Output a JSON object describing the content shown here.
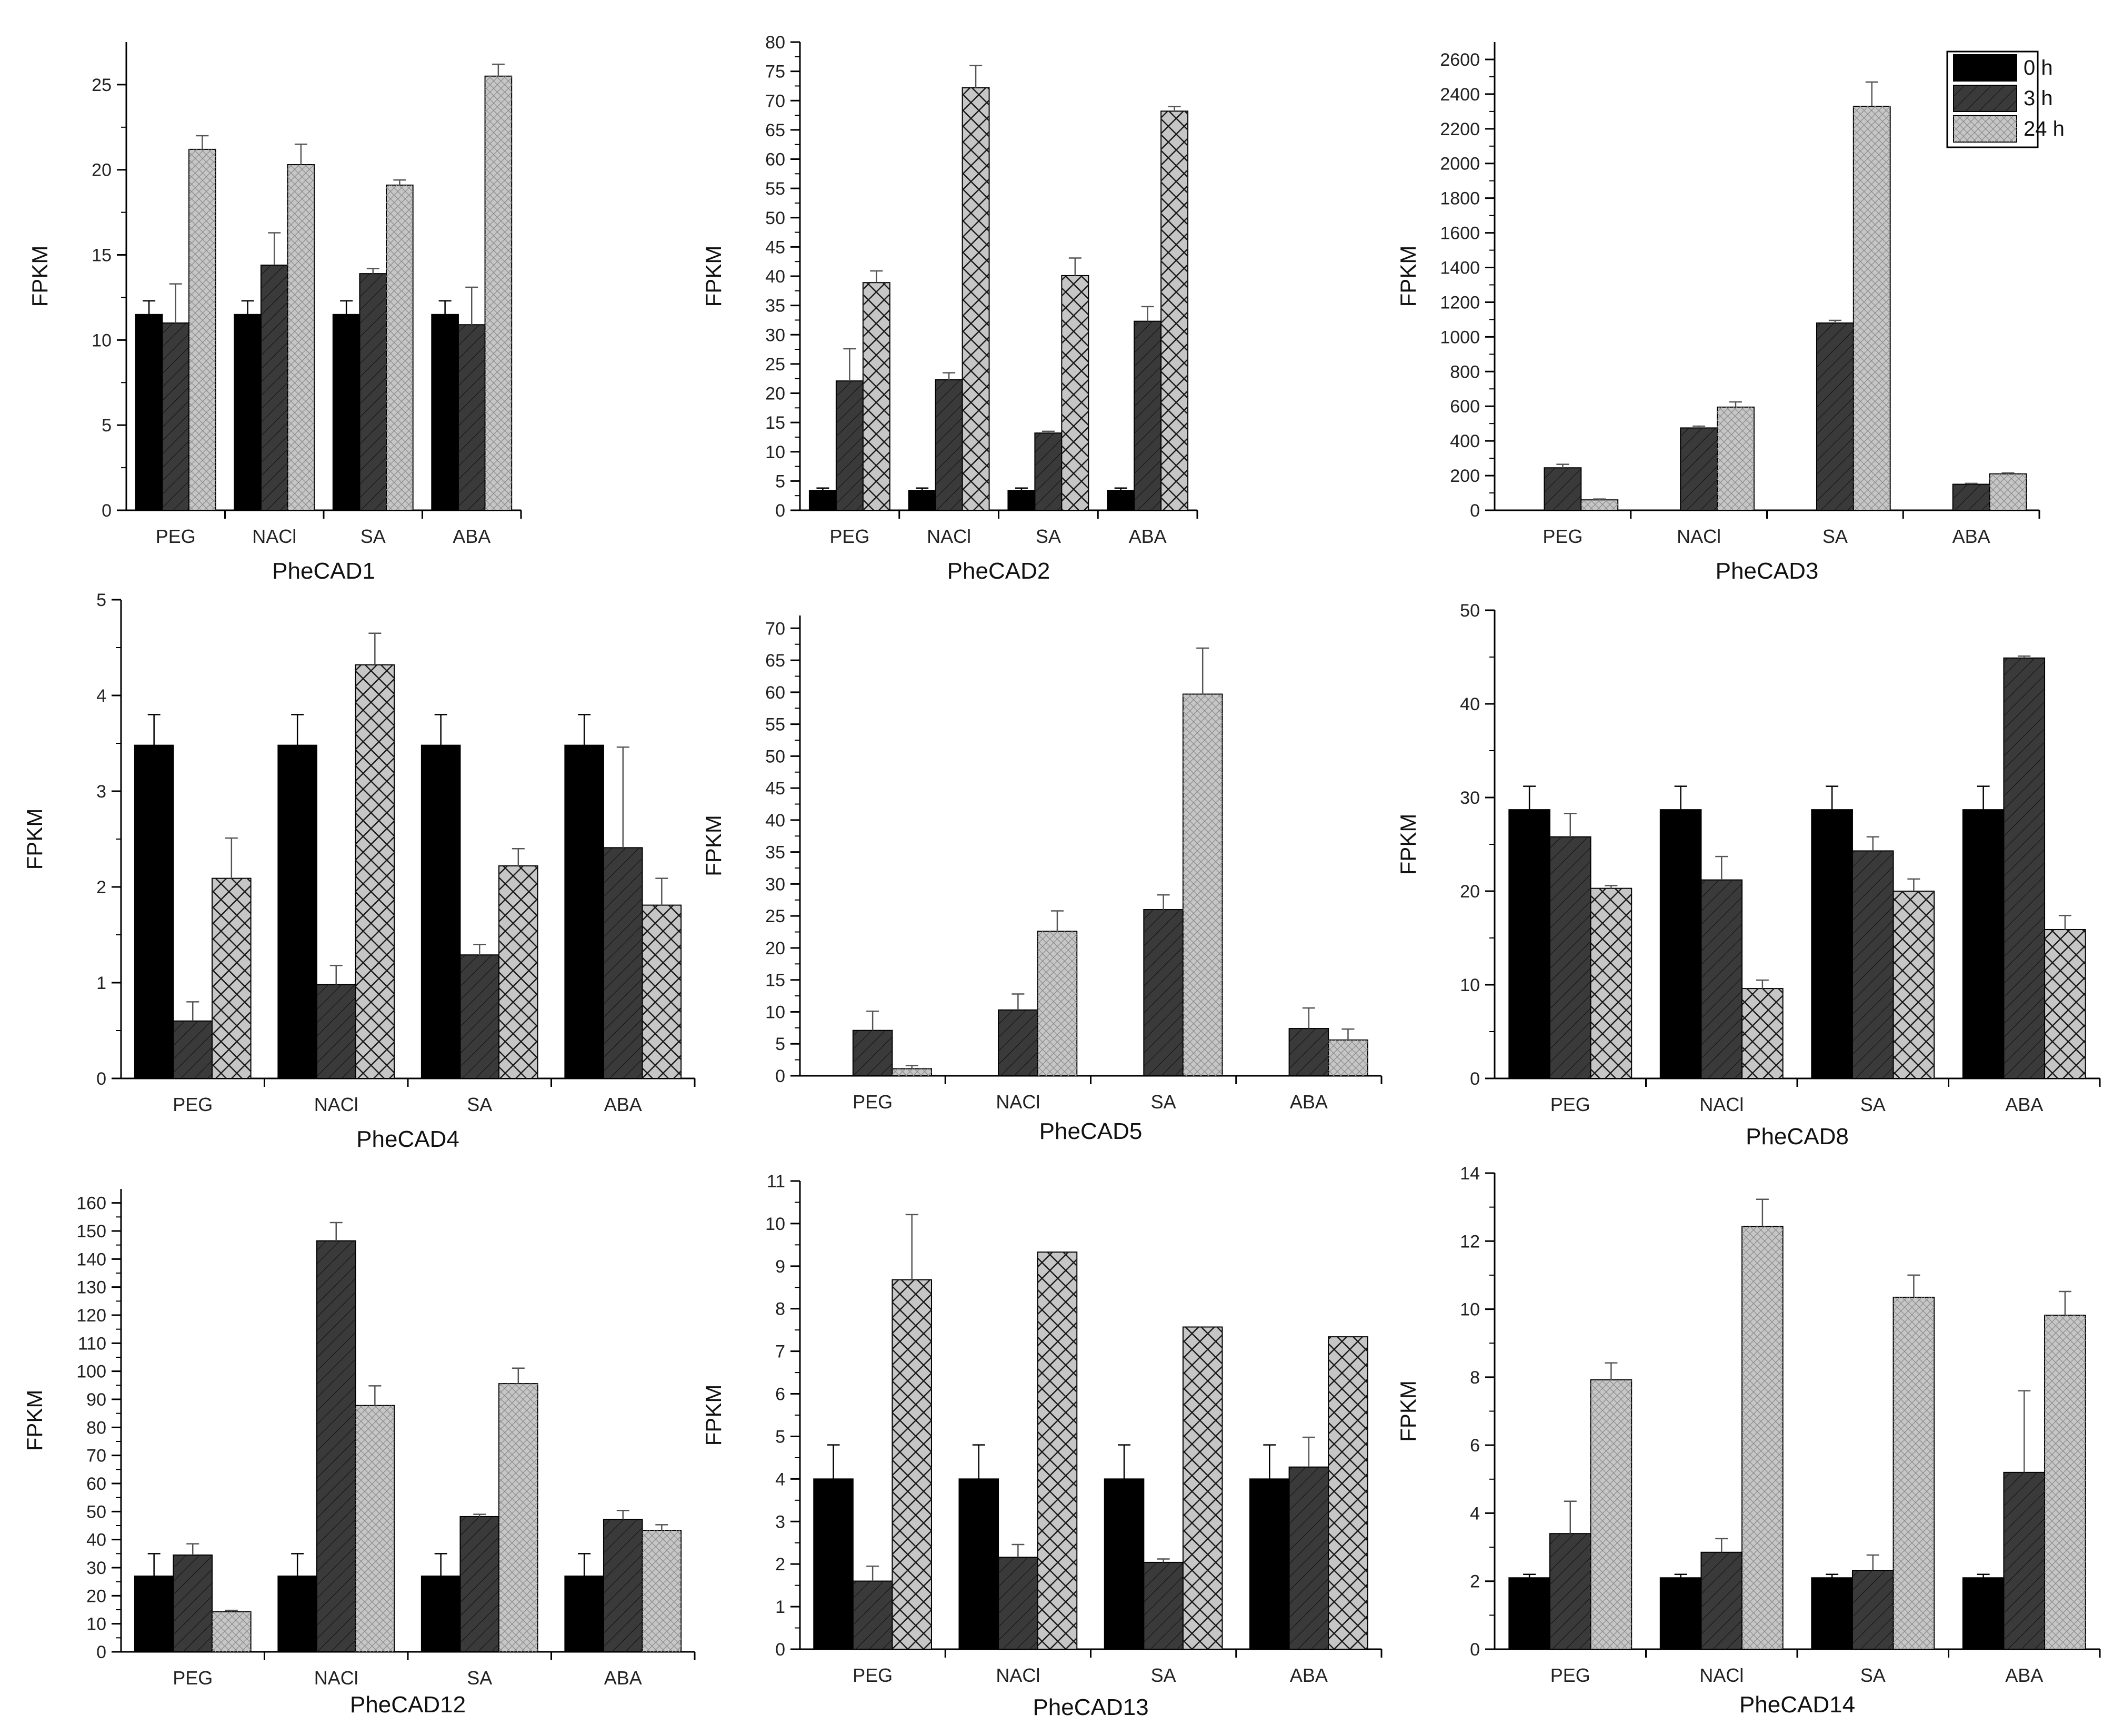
{
  "figure": {
    "series_names": [
      "0 h",
      "3 h",
      "24 h"
    ],
    "ylabel": "FPKM",
    "colors": {
      "s0": "#000000",
      "s1": "#3a3a3a",
      "s2": "#c6c6c6",
      "hatch": "#1a1a1a",
      "axis": "#000000"
    }
  },
  "chart_data": [
    {
      "type": "bar",
      "title": "PheCAD1",
      "xlabel": "",
      "ylabel": "FPKM",
      "categories": [
        "PEG",
        "NACl",
        "SA",
        "ABA"
      ],
      "ylim": [
        0,
        27.5
      ],
      "yticks": [
        0,
        5,
        10,
        15,
        20,
        25
      ],
      "series": [
        {
          "name": "0 h",
          "values": [
            11.5,
            11.5,
            11.5,
            11.5
          ],
          "errors": [
            0.8,
            0.8,
            0.8,
            0.8
          ]
        },
        {
          "name": "3 h",
          "values": [
            11.0,
            14.4,
            13.9,
            10.9
          ],
          "errors": [
            2.3,
            1.9,
            0.3,
            2.2
          ]
        },
        {
          "name": "24 h",
          "values": [
            21.2,
            20.3,
            19.1,
            25.5
          ],
          "errors": [
            0.8,
            1.2,
            0.3,
            0.7
          ]
        }
      ]
    },
    {
      "type": "bar",
      "title": "PheCAD2",
      "xlabel": "",
      "ylabel": "FPKM",
      "categories": [
        "PEG",
        "NACl",
        "SA",
        "ABA"
      ],
      "ylim": [
        0,
        80
      ],
      "yticks": [
        0,
        5,
        10,
        15,
        20,
        25,
        30,
        35,
        40,
        45,
        50,
        55,
        60,
        65,
        70,
        75,
        80
      ],
      "series": [
        {
          "name": "0 h",
          "values": [
            3.4,
            3.4,
            3.4,
            3.4
          ],
          "errors": [
            0.4,
            0.4,
            0.4,
            0.4
          ]
        },
        {
          "name": "3 h",
          "values": [
            22.1,
            22.3,
            13.2,
            32.3
          ],
          "errors": [
            5.5,
            1.2,
            0.3,
            2.5
          ]
        },
        {
          "name": "24 h",
          "values": [
            38.9,
            72.2,
            40.1,
            68.2
          ],
          "errors": [
            2.0,
            3.8,
            3.0,
            0.8
          ]
        }
      ]
    },
    {
      "type": "bar",
      "title": "PheCAD3",
      "xlabel": "",
      "ylabel": "FPKM",
      "categories": [
        "PEG",
        "NACl",
        "SA",
        "ABA"
      ],
      "ylim": [
        0,
        2700
      ],
      "yticks": [
        0,
        200,
        400,
        600,
        800,
        1000,
        1200,
        1400,
        1600,
        1800,
        2000,
        2200,
        2400,
        2600
      ],
      "series": [
        {
          "name": "0 h",
          "values": [
            0,
            0,
            0,
            0
          ],
          "errors": [
            0,
            0,
            0,
            0
          ]
        },
        {
          "name": "3 h",
          "values": [
            245,
            475,
            1080,
            150
          ],
          "errors": [
            20,
            10,
            15,
            5
          ]
        },
        {
          "name": "24 h",
          "values": [
            60,
            595,
            2330,
            210
          ],
          "errors": [
            5,
            30,
            140,
            5
          ]
        }
      ]
    },
    {
      "type": "bar",
      "title": "PheCAD4",
      "xlabel": "",
      "ylabel": "FPKM",
      "categories": [
        "PEG",
        "NACl",
        "SA",
        "ABA"
      ],
      "ylim": [
        0,
        5
      ],
      "yticks": [
        0,
        1,
        2,
        3,
        4,
        5
      ],
      "series": [
        {
          "name": "0 h",
          "values": [
            3.48,
            3.48,
            3.48,
            3.48
          ],
          "errors": [
            0.32,
            0.32,
            0.32,
            0.32
          ]
        },
        {
          "name": "3 h",
          "values": [
            0.6,
            0.98,
            1.29,
            2.41
          ],
          "errors": [
            0.2,
            0.2,
            0.11,
            1.05
          ]
        },
        {
          "name": "24 h",
          "values": [
            2.09,
            4.32,
            2.22,
            1.81
          ],
          "errors": [
            0.42,
            0.33,
            0.18,
            0.28
          ]
        }
      ]
    },
    {
      "type": "bar",
      "title": "PheCAD5",
      "xlabel": "",
      "ylabel": "FPKM",
      "categories": [
        "PEG",
        "NACl",
        "SA",
        "ABA"
      ],
      "ylim": [
        0,
        72
      ],
      "yticks": [
        0,
        5,
        10,
        15,
        20,
        25,
        30,
        35,
        40,
        45,
        50,
        55,
        60,
        65,
        70
      ],
      "series": [
        {
          "name": "0 h",
          "values": [
            0,
            0,
            0,
            0
          ],
          "errors": [
            0,
            0,
            0,
            0
          ]
        },
        {
          "name": "3 h",
          "values": [
            7.1,
            10.3,
            26.0,
            7.4
          ],
          "errors": [
            3.0,
            2.5,
            2.3,
            3.2
          ]
        },
        {
          "name": "24 h",
          "values": [
            1.1,
            22.6,
            59.7,
            5.6
          ],
          "errors": [
            0.5,
            3.2,
            7.2,
            1.7
          ]
        }
      ]
    },
    {
      "type": "bar",
      "title": "PheCAD8",
      "xlabel": "",
      "ylabel": "FPKM",
      "categories": [
        "PEG",
        "NACl",
        "SA",
        "ABA"
      ],
      "ylim": [
        0,
        50
      ],
      "yticks": [
        0,
        10,
        20,
        30,
        40,
        50
      ],
      "series": [
        {
          "name": "0 h",
          "values": [
            28.7,
            28.7,
            28.7,
            28.7
          ],
          "errors": [
            2.5,
            2.5,
            2.5,
            2.5
          ]
        },
        {
          "name": "3 h",
          "values": [
            25.8,
            21.2,
            24.3,
            44.9
          ],
          "errors": [
            2.5,
            2.5,
            1.5,
            0.2
          ]
        },
        {
          "name": "24 h",
          "values": [
            20.3,
            9.6,
            20.0,
            15.9
          ],
          "errors": [
            0.3,
            0.9,
            1.3,
            1.5
          ]
        }
      ]
    },
    {
      "type": "bar",
      "title": "PheCAD12",
      "xlabel": "",
      "ylabel": "FPKM",
      "categories": [
        "PEG",
        "NACl",
        "SA",
        "ABA"
      ],
      "ylim": [
        0,
        165
      ],
      "yticks": [
        0,
        10,
        20,
        30,
        40,
        50,
        60,
        70,
        80,
        90,
        100,
        110,
        120,
        130,
        140,
        150,
        160
      ],
      "series": [
        {
          "name": "0 h",
          "values": [
            27,
            27,
            27,
            27
          ],
          "errors": [
            8,
            8,
            8,
            8
          ]
        },
        {
          "name": "3 h",
          "values": [
            34.5,
            146.5,
            48.2,
            47.2
          ],
          "errors": [
            4,
            6.5,
            0.8,
            3.2
          ]
        },
        {
          "name": "24 h",
          "values": [
            14.3,
            87.8,
            95.6,
            43.3
          ],
          "errors": [
            0.5,
            7,
            5.5,
            2
          ]
        }
      ]
    },
    {
      "type": "bar",
      "title": "PheCAD13",
      "xlabel": "",
      "ylabel": "FPKM",
      "categories": [
        "PEG",
        "NACl",
        "SA",
        "ABA"
      ],
      "ylim": [
        0,
        11
      ],
      "yticks": [
        0,
        1,
        2,
        3,
        4,
        5,
        6,
        7,
        8,
        9,
        10,
        11
      ],
      "series": [
        {
          "name": "0 h",
          "values": [
            4.0,
            4.0,
            4.0,
            4.0
          ],
          "errors": [
            0.8,
            0.8,
            0.8,
            0.8
          ]
        },
        {
          "name": "3 h",
          "values": [
            1.6,
            2.16,
            2.04,
            4.28
          ],
          "errors": [
            0.35,
            0.3,
            0.08,
            0.7
          ]
        },
        {
          "name": "24 h",
          "values": [
            8.68,
            9.33,
            7.57,
            7.34
          ],
          "errors": [
            1.53,
            0.0,
            0.0,
            0.0
          ]
        }
      ]
    },
    {
      "type": "bar",
      "title": "PheCAD14",
      "xlabel": "",
      "ylabel": "FPKM",
      "categories": [
        "PEG",
        "NACl",
        "SA",
        "ABA"
      ],
      "ylim": [
        0,
        14
      ],
      "yticks": [
        0,
        2,
        4,
        6,
        8,
        10,
        12,
        14
      ],
      "series": [
        {
          "name": "0 h",
          "values": [
            2.1,
            2.1,
            2.1,
            2.1
          ],
          "errors": [
            0.1,
            0.1,
            0.1,
            0.1
          ]
        },
        {
          "name": "3 h",
          "values": [
            3.4,
            2.85,
            2.32,
            5.2
          ],
          "errors": [
            0.95,
            0.4,
            0.45,
            2.4
          ]
        },
        {
          "name": "24 h",
          "values": [
            7.92,
            12.43,
            10.35,
            9.82
          ],
          "errors": [
            0.5,
            0.8,
            0.65,
            0.7
          ]
        }
      ]
    }
  ]
}
